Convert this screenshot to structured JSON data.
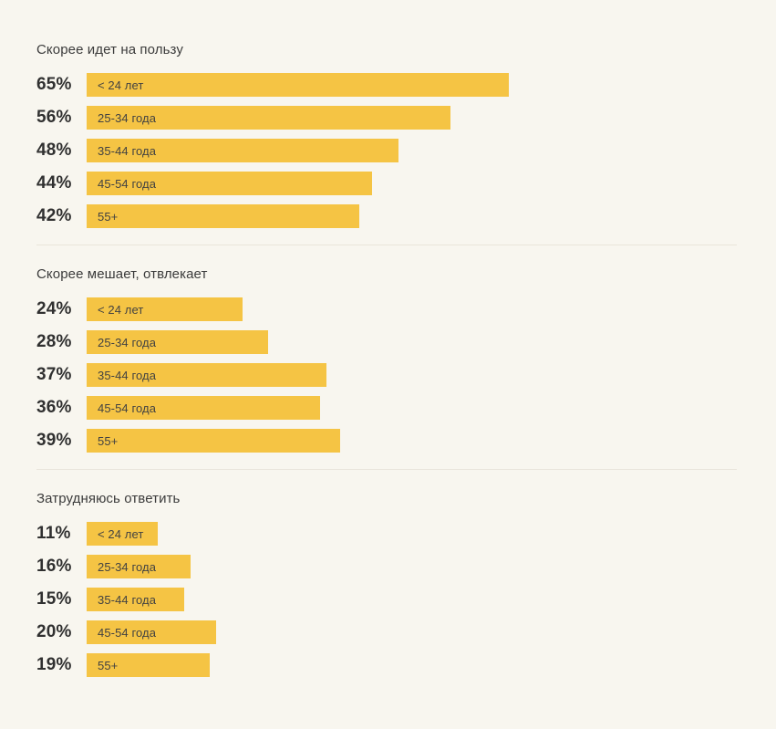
{
  "colors": {
    "background": "#F8F6EF",
    "bar": "#F5C444",
    "divider": "#E9E5DB",
    "title_text": "#3B3B3B",
    "percent_text": "#303030",
    "category_text": "#424242"
  },
  "chart_data": {
    "type": "bar",
    "orientation": "horizontal",
    "unit": "%",
    "xlim": [
      0,
      100
    ],
    "grid": false,
    "legend": "none",
    "value_label_position": "left-of-bar",
    "category_label_position": "inside-bar-left",
    "categories": [
      "< 24 лет",
      "25-34 года",
      "35-44 года",
      "45-54 года",
      "55+"
    ],
    "groups": [
      {
        "title": "Скорее идет на пользу",
        "values": [
          65,
          56,
          48,
          44,
          42
        ],
        "rows": [
          {
            "percent": "65%",
            "value": 65,
            "category": "< 24 лет"
          },
          {
            "percent": "56%",
            "value": 56,
            "category": "25-34 года"
          },
          {
            "percent": "48%",
            "value": 48,
            "category": "35-44 года"
          },
          {
            "percent": "44%",
            "value": 44,
            "category": "45-54 года"
          },
          {
            "percent": "42%",
            "value": 42,
            "category": "55+"
          }
        ]
      },
      {
        "title": "Скорее мешает, отвлекает",
        "values": [
          24,
          28,
          37,
          36,
          39
        ],
        "rows": [
          {
            "percent": "24%",
            "value": 24,
            "category": "< 24 лет"
          },
          {
            "percent": "28%",
            "value": 28,
            "category": "25-34 года"
          },
          {
            "percent": "37%",
            "value": 37,
            "category": "35-44 года"
          },
          {
            "percent": "36%",
            "value": 36,
            "category": "45-54 года"
          },
          {
            "percent": "39%",
            "value": 39,
            "category": "55+"
          }
        ]
      },
      {
        "title": "Затрудняюсь ответить",
        "values": [
          11,
          16,
          15,
          20,
          19
        ],
        "rows": [
          {
            "percent": "11%",
            "value": 11,
            "category": "< 24 лет"
          },
          {
            "percent": "16%",
            "value": 16,
            "category": "25-34 года"
          },
          {
            "percent": "15%",
            "value": 15,
            "category": "35-44 года"
          },
          {
            "percent": "20%",
            "value": 20,
            "category": "45-54 года"
          },
          {
            "percent": "19%",
            "value": 19,
            "category": "55+"
          }
        ]
      }
    ]
  }
}
